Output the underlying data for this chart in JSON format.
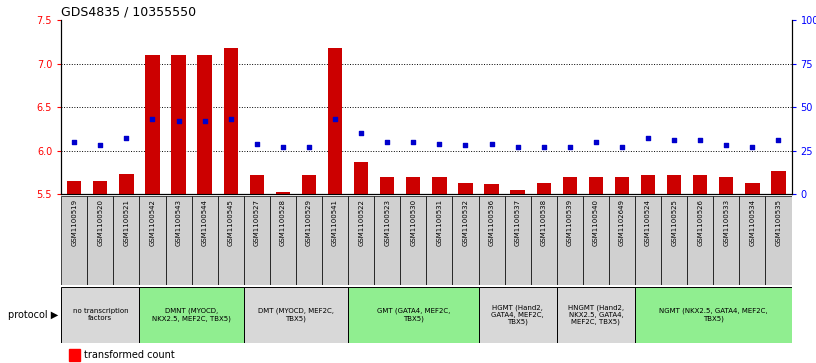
{
  "title": "GDS4835 / 10355550",
  "samples": [
    "GSM1100519",
    "GSM1100520",
    "GSM1100521",
    "GSM1100542",
    "GSM1100543",
    "GSM1100544",
    "GSM1100545",
    "GSM1100527",
    "GSM1100528",
    "GSM1100529",
    "GSM1100541",
    "GSM1100522",
    "GSM1100523",
    "GSM1100530",
    "GSM1100531",
    "GSM1100532",
    "GSM1100536",
    "GSM1100537",
    "GSM1100538",
    "GSM1100539",
    "GSM1100540",
    "GSM1102649",
    "GSM1100524",
    "GSM1100525",
    "GSM1100526",
    "GSM1100533",
    "GSM1100534",
    "GSM1100535"
  ],
  "bar_values": [
    5.65,
    5.65,
    5.73,
    7.1,
    7.1,
    7.1,
    7.18,
    5.72,
    5.53,
    5.72,
    7.18,
    5.87,
    5.7,
    5.7,
    5.7,
    5.63,
    5.62,
    5.55,
    5.63,
    5.7,
    5.7,
    5.7,
    5.72,
    5.72,
    5.72,
    5.7,
    5.63,
    5.77
  ],
  "percentile_values": [
    30,
    28,
    32,
    43,
    42,
    42,
    43,
    29,
    27,
    27,
    43,
    35,
    30,
    30,
    29,
    28,
    29,
    27,
    27,
    27,
    30,
    27,
    32,
    31,
    31,
    28,
    27,
    31
  ],
  "groups": [
    {
      "label": "no transcription\nfactors",
      "start": 0,
      "end": 3,
      "color": "#d8d8d8"
    },
    {
      "label": "DMNT (MYOCD,\nNKX2.5, MEF2C, TBX5)",
      "start": 3,
      "end": 7,
      "color": "#90ee90"
    },
    {
      "label": "DMT (MYOCD, MEF2C,\nTBX5)",
      "start": 7,
      "end": 11,
      "color": "#d8d8d8"
    },
    {
      "label": "GMT (GATA4, MEF2C,\nTBX5)",
      "start": 11,
      "end": 16,
      "color": "#90ee90"
    },
    {
      "label": "HGMT (Hand2,\nGATA4, MEF2C,\nTBX5)",
      "start": 16,
      "end": 19,
      "color": "#d8d8d8"
    },
    {
      "label": "HNGMT (Hand2,\nNKX2.5, GATA4,\nMEF2C, TBX5)",
      "start": 19,
      "end": 22,
      "color": "#d8d8d8"
    },
    {
      "label": "NGMT (NKX2.5, GATA4, MEF2C,\nTBX5)",
      "start": 22,
      "end": 28,
      "color": "#90ee90"
    }
  ],
  "bar_color": "#cc0000",
  "dot_color": "#0000cc",
  "ylim_left": [
    5.5,
    7.5
  ],
  "ylim_right": [
    0,
    100
  ],
  "yticks_left": [
    5.5,
    6.0,
    6.5,
    7.0,
    7.5
  ],
  "yticks_right": [
    0,
    25,
    50,
    75,
    100
  ],
  "ytick_labels_right": [
    "0",
    "25",
    "50",
    "75",
    "100%"
  ],
  "grid_lines": [
    6.0,
    6.5,
    7.0
  ],
  "bar_width": 0.55,
  "protocol_label": "protocol",
  "sample_box_color": "#d0d0d0",
  "fig_bg": "#ffffff"
}
